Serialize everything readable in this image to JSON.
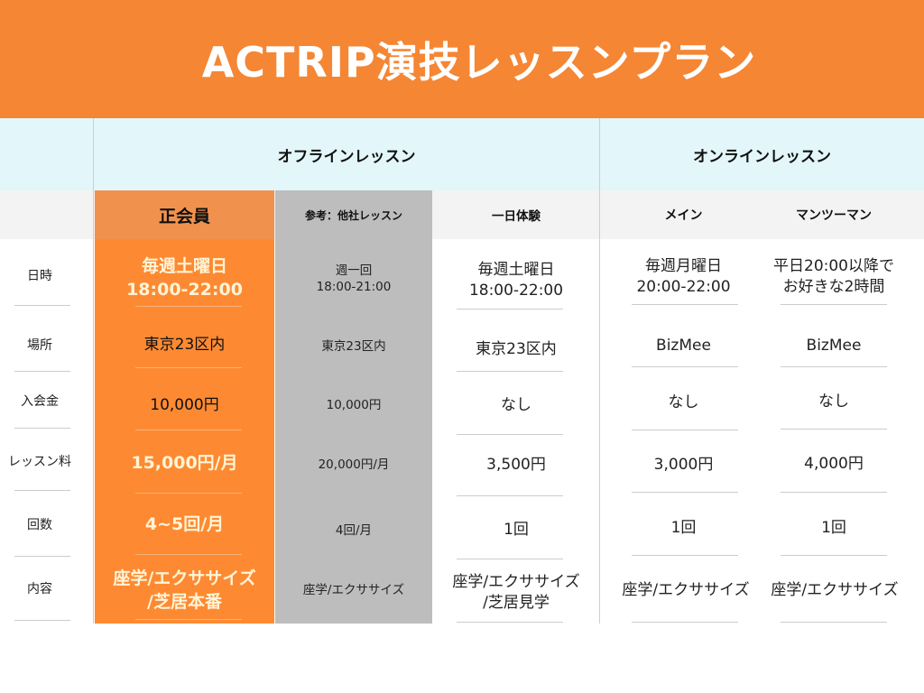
{
  "title": "ACTRIP演技レッスンプラン",
  "sections": {
    "offline": "オフラインレッスン",
    "online": "オンラインレッスン"
  },
  "columns": [
    "正会員",
    "参考：他社レッスン",
    "一日体験",
    "メイン",
    "マンツーマン"
  ],
  "rows": [
    "日時",
    "場所",
    "入会金",
    "レッスン料",
    "回数",
    "内容"
  ],
  "cells": {
    "member": [
      "毎週土曜日\n18:00-22:00",
      "東京23区内",
      "10,000円",
      "15,000円/月",
      "4~5回/月",
      "座学/エクササイズ\n/芝居本番"
    ],
    "other": [
      "週一回\n18:00-21:00",
      "東京23区内",
      "10,000円",
      "20,000円/月",
      "4回/月",
      "座学/エクササイズ"
    ],
    "trial": [
      "毎週土曜日\n18:00-22:00",
      "東京23区内",
      "なし",
      "3,500円",
      "1回",
      "座学/エクササイズ\n/芝居見学"
    ],
    "main": [
      "毎週月曜日\n20:00-22:00",
      "BizMee",
      "なし",
      "3,000円",
      "1回",
      "座学/エクササイズ"
    ],
    "personal": [
      "平日20:00以降で\nお好きな2時間",
      "BizMee",
      "なし",
      "4,000円",
      "1回",
      "座学/エクササイズ"
    ]
  },
  "colors": {
    "orange": "#f58634",
    "member_column": "#fd8a32",
    "member_header": "#f0924e",
    "reference_column": "#bdbdbd",
    "section_header": "#e3f6fa"
  }
}
